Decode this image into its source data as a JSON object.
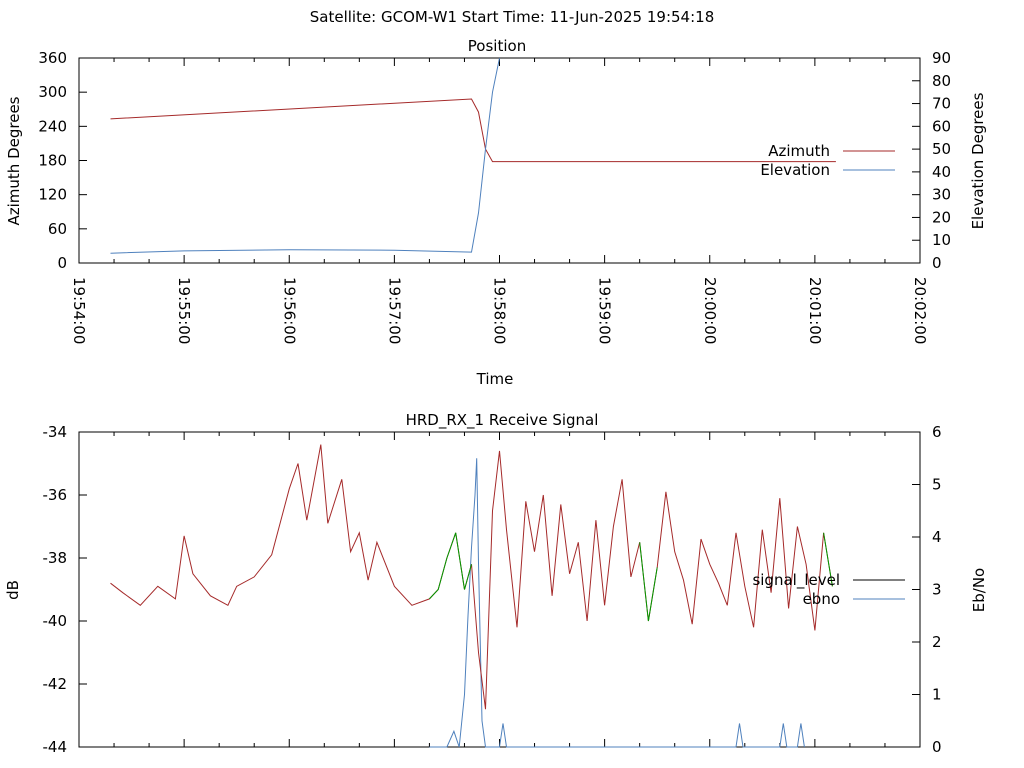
{
  "header": {
    "text": "Satellite: GCOM-W1    Start Time: 11-Jun-2025 19:54:18"
  },
  "chart_data": [
    {
      "type": "line",
      "title": "Position",
      "xlabel": "Time",
      "ylabel_left": "Azimuth Degrees",
      "ylabel_right": "Elevation Degrees",
      "xlim": [
        "19:54:00",
        "20:02:00"
      ],
      "ylim_left": [
        0,
        360
      ],
      "ylim_right": [
        0,
        90
      ],
      "x_tick_labels": [
        "19:54:00",
        "19:55:00",
        "19:56:00",
        "19:57:00",
        "19:58:00",
        "19:59:00",
        "20:00:00",
        "20:01:00",
        "20:02:00"
      ],
      "y_tick_labels_left": [
        "0",
        "60",
        "120",
        "180",
        "240",
        "300",
        "360"
      ],
      "y_tick_labels_right": [
        "0",
        "10",
        "20",
        "30",
        "40",
        "50",
        "60",
        "70",
        "80",
        "90"
      ],
      "legend_position": "right",
      "series": [
        {
          "name": "Azimuth",
          "axis": "left",
          "color": "#a52a2a",
          "x": [
            "19:54:18",
            "19:57:44",
            "19:57:48",
            "19:57:52",
            "19:57:56",
            "20:01:12"
          ],
          "y": [
            253,
            288,
            265,
            200,
            178,
            178
          ]
        },
        {
          "name": "Elevation",
          "axis": "right",
          "color": "#4f81bd",
          "x": [
            "19:54:18",
            "19:55:00",
            "19:56:00",
            "19:57:00",
            "19:57:44",
            "19:57:48",
            "19:57:52",
            "19:57:56",
            "19:58:00"
          ],
          "y": [
            4.3,
            5.3,
            5.8,
            5.6,
            4.8,
            22,
            50,
            75,
            92
          ]
        }
      ]
    },
    {
      "type": "line",
      "title": "HRD_RX_1 Receive Signal",
      "ylabel_left": "dB",
      "ylabel_right": "Eb/No",
      "xlim": [
        "19:54:00",
        "20:02:00"
      ],
      "ylim_left": [
        -44,
        -34
      ],
      "ylim_right": [
        0,
        6
      ],
      "y_tick_labels_left": [
        "-34",
        "-36",
        "-38",
        "-40",
        "-42",
        "-44"
      ],
      "y_tick_labels_right": [
        "0",
        "1",
        "2",
        "3",
        "4",
        "5",
        "6"
      ],
      "legend_position": "right",
      "series": [
        {
          "name": "signal_level",
          "axis": "left",
          "color": "#a52a2a",
          "x": [
            "19:54:18",
            "19:54:25",
            "19:54:35",
            "19:54:45",
            "19:54:55",
            "19:55:00",
            "19:55:05",
            "19:55:15",
            "19:55:25",
            "19:55:30",
            "19:55:40",
            "19:55:50",
            "19:56:00",
            "19:56:05",
            "19:56:10",
            "19:56:18",
            "19:56:22",
            "19:56:30",
            "19:56:35",
            "19:56:40",
            "19:56:45",
            "19:56:50",
            "19:57:00",
            "19:57:10",
            "19:57:20",
            "19:57:25",
            "19:57:30",
            "19:57:35",
            "19:57:40",
            "19:57:44",
            "19:57:48",
            "19:57:52",
            "19:57:56",
            "19:58:00",
            "19:58:04",
            "19:58:10",
            "19:58:15",
            "19:58:20",
            "19:58:25",
            "19:58:30",
            "19:58:35",
            "19:58:40",
            "19:58:45",
            "19:58:50",
            "19:58:55",
            "19:59:00",
            "19:59:05",
            "19:59:10",
            "19:59:15",
            "19:59:20",
            "19:59:25",
            "19:59:30",
            "19:59:35",
            "19:59:40",
            "19:59:45",
            "19:59:50",
            "19:59:55",
            "20:00:00",
            "20:00:05",
            "20:00:10",
            "20:00:15",
            "20:00:20",
            "20:00:25",
            "20:00:30",
            "20:00:35",
            "20:00:40",
            "20:00:45",
            "20:00:50",
            "20:00:55",
            "20:01:00",
            "20:01:05",
            "20:01:10"
          ],
          "y": [
            -38.8,
            -39.1,
            -39.5,
            -38.9,
            -39.3,
            -37.3,
            -38.5,
            -39.2,
            -39.5,
            -38.9,
            -38.6,
            -37.9,
            -35.8,
            -35.0,
            -36.8,
            -34.4,
            -36.9,
            -35.5,
            -37.8,
            -37.2,
            -38.7,
            -37.5,
            -38.9,
            -39.5,
            -39.3,
            -39.0,
            -38.0,
            -37.2,
            -39.0,
            -38.2,
            -41.0,
            -42.8,
            -36.5,
            -34.6,
            -37.1,
            -40.2,
            -36.2,
            -37.8,
            -36.0,
            -39.2,
            -36.3,
            -38.5,
            -37.5,
            -40.0,
            -36.8,
            -39.5,
            -37.0,
            -35.5,
            -38.6,
            -37.5,
            -40.0,
            -38.3,
            -35.9,
            -37.8,
            -38.7,
            -40.1,
            -37.4,
            -38.2,
            -38.8,
            -39.5,
            -37.2,
            -38.9,
            -40.2,
            -37.1,
            -39.1,
            -36.1,
            -39.6,
            -37.0,
            -38.2,
            -40.3,
            -37.2,
            -38.9
          ]
        },
        {
          "name": "ebno",
          "axis": "right",
          "color": "#4f81bd",
          "x": [
            "19:57:20",
            "19:57:30",
            "19:57:34",
            "19:57:37",
            "19:57:40",
            "19:57:42",
            "19:57:44",
            "19:57:46",
            "19:57:47",
            "19:57:48",
            "19:57:50",
            "19:57:52",
            "19:58:00",
            "19:58:02",
            "19:58:04",
            "19:58:06",
            "20:00:15",
            "20:00:17",
            "20:00:19",
            "20:00:40",
            "20:00:42",
            "20:00:44",
            "20:00:50",
            "20:00:52",
            "20:00:54"
          ],
          "y": [
            0,
            0,
            0.3,
            0,
            1,
            2.5,
            3.8,
            4.8,
            5.5,
            3.5,
            0.5,
            0,
            0,
            0.45,
            0,
            0,
            0,
            0.45,
            0,
            0,
            0.45,
            0,
            0,
            0.45,
            0
          ]
        }
      ]
    }
  ],
  "legend": {
    "bottom_series_1": "signal_level",
    "bottom_series_2": "ebno"
  },
  "colors": {
    "azimuth": "#a52a2a",
    "elevation": "#4f81bd",
    "signal_level": "#a52a2a",
    "ebno": "#4f81bd",
    "locked": "#009900"
  }
}
